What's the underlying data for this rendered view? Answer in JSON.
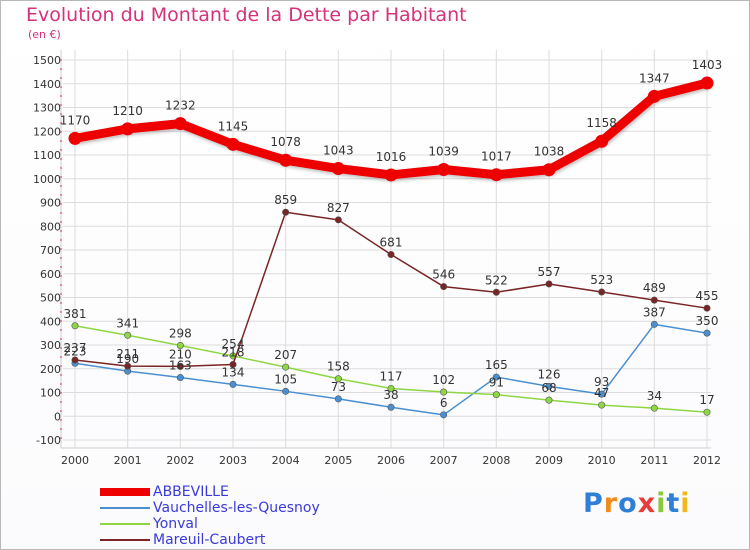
{
  "title": "Evolution du Montant de la Dette par Habitant",
  "unit_label": "(en €)",
  "logo_text": "Proxiti",
  "chart_data": {
    "type": "line",
    "title": "Evolution du Montant de la Dette par Habitant",
    "ylabel": "(en €)",
    "xlabel": "",
    "x": [
      "2000",
      "2001",
      "2002",
      "2003",
      "2004",
      "2005",
      "2006",
      "2007",
      "2008",
      "2009",
      "2010",
      "2011",
      "2012"
    ],
    "ylim": [
      -100,
      1500
    ],
    "yticks": [
      "-100",
      "0",
      "100",
      "200",
      "300",
      "400",
      "500",
      "600",
      "700",
      "800",
      "900",
      "1000",
      "1100",
      "1200",
      "1300",
      "1400",
      "1500"
    ],
    "grid": true,
    "legend_position": "bottom-left",
    "series": [
      {
        "name": "ABBEVILLE",
        "color": "#ee0000",
        "values": [
          1170,
          1210,
          1232,
          1145,
          1078,
          1043,
          1016,
          1039,
          1017,
          1038,
          1158,
          1347,
          1403
        ]
      },
      {
        "name": "Vauchelles-les-Quesnoy",
        "color": "#4a90d0",
        "values": [
          223,
          190,
          163,
          134,
          105,
          73,
          38,
          6,
          165,
          126,
          93,
          387,
          350
        ]
      },
      {
        "name": "Yonval",
        "color": "#8ed644",
        "values": [
          381,
          341,
          298,
          254,
          207,
          158,
          117,
          102,
          91,
          68,
          47,
          34,
          17
        ]
      },
      {
        "name": "Mareuil-Caubert",
        "color": "#7a2525",
        "values": [
          237,
          211,
          210,
          218,
          859,
          827,
          681,
          546,
          522,
          557,
          523,
          489,
          455
        ]
      }
    ]
  }
}
